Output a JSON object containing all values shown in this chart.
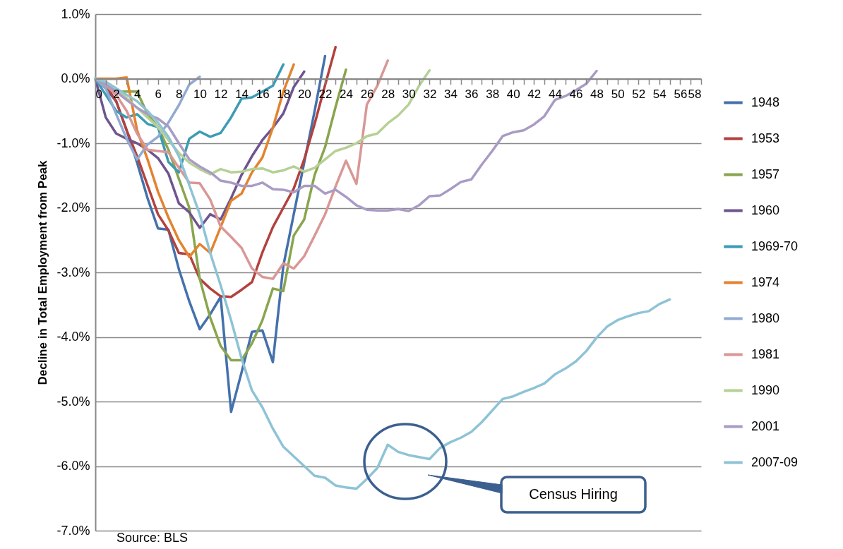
{
  "chart_data": {
    "type": "line",
    "ylabel": "Decline in Total Employment from Peak",
    "x": [
      0,
      1,
      2,
      3,
      4,
      5,
      6,
      7,
      8,
      9,
      10,
      11,
      12,
      13,
      14,
      15,
      16,
      17,
      18,
      19,
      20,
      21,
      22,
      23,
      24,
      25,
      26,
      27,
      28,
      29,
      30,
      31,
      32,
      33,
      34,
      35,
      36,
      37,
      38,
      39,
      40,
      41,
      42,
      43,
      44,
      45,
      46,
      47,
      48,
      49,
      50,
      51,
      52,
      53,
      54,
      55
    ],
    "series": [
      {
        "name": "1948",
        "color": "#4471ac",
        "values": [
          0,
          -0.15,
          -0.35,
          -0.8,
          -1.3,
          -1.85,
          -2.32,
          -2.34,
          -2.95,
          -3.45,
          -3.88,
          -3.65,
          -3.38,
          -5.16,
          -4.55,
          -3.92,
          -3.9,
          -4.39,
          -2.9,
          -2.1,
          -1.3,
          -0.5,
          0.35,
          null,
          null,
          null,
          null,
          null,
          null,
          null,
          null,
          null,
          null,
          null,
          null,
          null,
          null,
          null,
          null,
          null,
          null,
          null,
          null,
          null,
          null,
          null,
          null,
          null,
          null,
          null,
          null,
          null,
          null,
          null,
          null,
          null
        ]
      },
      {
        "name": "1953",
        "color": "#b3413e",
        "values": [
          0,
          -0.1,
          -0.35,
          -0.8,
          -1.2,
          -1.65,
          -2.1,
          -2.35,
          -2.7,
          -2.72,
          -3.1,
          -3.25,
          -3.37,
          -3.38,
          -3.27,
          -3.15,
          -2.69,
          -2.3,
          -2.0,
          -1.7,
          -1.25,
          -0.7,
          -0.1,
          0.49,
          null,
          null,
          null,
          null,
          null,
          null,
          null,
          null,
          null,
          null,
          null,
          null,
          null,
          null,
          null,
          null,
          null,
          null,
          null,
          null,
          null,
          null,
          null,
          null,
          null,
          null,
          null,
          null,
          null,
          null,
          null,
          null
        ]
      },
      {
        "name": "1957",
        "color": "#89a54e",
        "values": [
          0,
          -0.1,
          -0.2,
          -0.2,
          -0.2,
          -0.55,
          -0.75,
          -1.1,
          -1.55,
          -2.0,
          -3.1,
          -3.7,
          -4.14,
          -4.36,
          -4.36,
          -4.1,
          -3.74,
          -3.25,
          -3.29,
          -2.43,
          -2.18,
          -1.49,
          -1.06,
          -0.44,
          0.14,
          null,
          null,
          null,
          null,
          null,
          null,
          null,
          null,
          null,
          null,
          null,
          null,
          null,
          null,
          null,
          null,
          null,
          null,
          null,
          null,
          null,
          null,
          null,
          null,
          null,
          null,
          null,
          null,
          null,
          null,
          null
        ]
      },
      {
        "name": "1960",
        "color": "#6f548f",
        "values": [
          0,
          -0.6,
          -0.85,
          -0.93,
          -1.0,
          -1.1,
          -1.23,
          -1.47,
          -1.93,
          -2.07,
          -2.31,
          -2.1,
          -2.18,
          -1.85,
          -1.49,
          -1.2,
          -0.95,
          -0.76,
          -0.54,
          -0.13,
          0.11,
          null,
          null,
          null,
          null,
          null,
          null,
          null,
          null,
          null,
          null,
          null,
          null,
          null,
          null,
          null,
          null,
          null,
          null,
          null,
          null,
          null,
          null,
          null,
          null,
          null,
          null,
          null,
          null,
          null,
          null,
          null,
          null,
          null,
          null,
          null
        ]
      },
      {
        "name": "1969-70",
        "color": "#3c9bb5",
        "values": [
          0,
          -0.25,
          -0.5,
          -0.6,
          -0.55,
          -0.7,
          -0.75,
          -1.29,
          -1.45,
          -0.93,
          -0.82,
          -0.9,
          -0.84,
          -0.6,
          -0.31,
          -0.29,
          -0.2,
          -0.11,
          0.22,
          null,
          null,
          null,
          null,
          null,
          null,
          null,
          null,
          null,
          null,
          null,
          null,
          null,
          null,
          null,
          null,
          null,
          null,
          null,
          null,
          null,
          null,
          null,
          null,
          null,
          null,
          null,
          null,
          null,
          null,
          null,
          null,
          null,
          null,
          null,
          null,
          null
        ]
      },
      {
        "name": "1974",
        "color": "#e3832f",
        "values": [
          0,
          0,
          0,
          0.02,
          -0.8,
          -1.25,
          -1.75,
          -2.15,
          -2.5,
          -2.76,
          -2.56,
          -2.7,
          -2.3,
          -1.89,
          -1.78,
          -1.45,
          -1.22,
          -0.76,
          -0.2,
          0.22,
          null,
          null,
          null,
          null,
          null,
          null,
          null,
          null,
          null,
          null,
          null,
          null,
          null,
          null,
          null,
          null,
          null,
          null,
          null,
          null,
          null,
          null,
          null,
          null,
          null,
          null,
          null,
          null,
          null,
          null,
          null,
          null,
          null,
          null,
          null,
          null
        ]
      },
      {
        "name": "1980",
        "color": "#92aad2",
        "values": [
          0,
          -0.15,
          -0.55,
          -0.93,
          -1.25,
          -1.02,
          -0.9,
          -0.68,
          -0.41,
          -0.09,
          0.03,
          null,
          null,
          null,
          null,
          null,
          null,
          null,
          null,
          null,
          null,
          null,
          null,
          null,
          null,
          null,
          null,
          null,
          null,
          null,
          null,
          null,
          null,
          null,
          null,
          null,
          null,
          null,
          null,
          null,
          null,
          null,
          null,
          null,
          null,
          null,
          null,
          null,
          null,
          null,
          null,
          null,
          null,
          null,
          null,
          null
        ]
      },
      {
        "name": "1981",
        "color": "#d99795",
        "values": [
          0,
          -0.1,
          -0.25,
          -0.5,
          -0.85,
          -1.1,
          -1.12,
          -1.14,
          -1.38,
          -1.61,
          -1.62,
          -1.87,
          -2.29,
          -2.45,
          -2.62,
          -2.94,
          -3.07,
          -3.1,
          -2.86,
          -2.94,
          -2.75,
          -2.43,
          -2.1,
          -1.67,
          -1.27,
          -1.63,
          -0.4,
          -0.11,
          0.28,
          null,
          null,
          null,
          null,
          null,
          null,
          null,
          null,
          null,
          null,
          null,
          null,
          null,
          null,
          null,
          null,
          null,
          null,
          null,
          null,
          null,
          null,
          null,
          null,
          null,
          null,
          null
        ]
      },
      {
        "name": "1990",
        "color": "#b6d095",
        "values": [
          0,
          -0.05,
          -0.15,
          -0.3,
          -0.45,
          -0.6,
          -0.75,
          -0.95,
          -1.15,
          -1.3,
          -1.4,
          -1.48,
          -1.4,
          -1.45,
          -1.44,
          -1.4,
          -1.39,
          -1.45,
          -1.42,
          -1.36,
          -1.44,
          -1.38,
          -1.25,
          -1.12,
          -1.07,
          -1.0,
          -0.89,
          -0.85,
          -0.69,
          -0.57,
          -0.4,
          -0.11,
          0.13,
          null,
          null,
          null,
          null,
          null,
          null,
          null,
          null,
          null,
          null,
          null,
          null,
          null,
          null,
          null,
          null,
          null,
          null,
          null,
          null,
          null,
          null,
          null
        ]
      },
      {
        "name": "2001",
        "color": "#a99bc4",
        "values": [
          0,
          -0.09,
          -0.2,
          -0.33,
          -0.45,
          -0.55,
          -0.62,
          -0.74,
          -1.0,
          -1.25,
          -1.36,
          -1.45,
          -1.58,
          -1.61,
          -1.66,
          -1.66,
          -1.61,
          -1.71,
          -1.72,
          -1.76,
          -1.66,
          -1.66,
          -1.78,
          -1.72,
          -1.83,
          -1.96,
          -2.03,
          -2.04,
          -2.04,
          -2.02,
          -2.05,
          -1.96,
          -1.82,
          -1.81,
          -1.71,
          -1.6,
          -1.56,
          -1.33,
          -1.12,
          -0.89,
          -0.83,
          -0.8,
          -0.71,
          -0.58,
          -0.33,
          -0.27,
          -0.18,
          -0.08,
          0.12,
          null,
          null,
          null,
          null,
          null,
          null,
          null
        ]
      },
      {
        "name": "2007-09",
        "color": "#8ec3d6",
        "values": [
          0,
          -0.05,
          -0.15,
          -0.25,
          -0.35,
          -0.5,
          -0.68,
          -0.9,
          -1.2,
          -1.65,
          -2.1,
          -2.7,
          -3.2,
          -3.74,
          -4.33,
          -4.83,
          -5.09,
          -5.42,
          -5.7,
          -5.85,
          -6.0,
          -6.15,
          -6.18,
          -6.3,
          -6.33,
          -6.35,
          -6.2,
          -6.03,
          -5.67,
          -5.78,
          -5.83,
          -5.86,
          -5.89,
          -5.72,
          -5.63,
          -5.56,
          -5.47,
          -5.32,
          -5.14,
          -4.96,
          -4.92,
          -4.85,
          -4.79,
          -4.72,
          -4.58,
          -4.49,
          -4.38,
          -4.22,
          -4.01,
          -3.84,
          -3.74,
          -3.68,
          -3.63,
          -3.6,
          -3.49,
          -3.42
        ]
      }
    ],
    "xlim": [
      0,
      58
    ],
    "xticks": [
      0,
      {
        "value": 1,
        "label": null
      },
      2,
      {
        "value": 3,
        "label": null
      },
      4,
      {
        "value": 5,
        "label": null
      },
      6,
      {
        "value": 7,
        "label": null
      },
      8,
      {
        "value": 9,
        "label": null
      },
      10,
      {
        "value": 11,
        "label": null
      },
      12,
      {
        "value": 13,
        "label": null
      },
      14,
      {
        "value": 15,
        "label": null
      },
      16,
      {
        "value": 17,
        "label": null
      },
      18,
      {
        "value": 19,
        "label": null
      },
      20,
      {
        "value": 21,
        "label": null
      },
      22,
      {
        "value": 23,
        "label": null
      },
      24,
      {
        "value": 25,
        "label": null
      },
      26,
      {
        "value": 27,
        "label": null
      },
      28,
      {
        "value": 29,
        "label": null
      },
      30,
      {
        "value": 31,
        "label": null
      },
      32,
      {
        "value": 33,
        "label": null
      },
      34,
      {
        "value": 35,
        "label": null
      },
      36,
      {
        "value": 37,
        "label": null
      },
      38,
      {
        "value": 39,
        "label": null
      },
      40,
      {
        "value": 41,
        "label": null
      },
      42,
      {
        "value": 43,
        "label": null
      },
      44,
      {
        "value": 45,
        "label": null
      },
      46,
      {
        "value": 47,
        "label": null
      },
      48,
      {
        "value": 49,
        "label": null
      },
      50,
      {
        "value": 51,
        "label": null
      },
      52,
      {
        "value": 53,
        "label": null
      },
      54,
      {
        "value": 55,
        "label": null
      },
      56,
      {
        "value": 57,
        "label": null
      },
      58
    ],
    "ylim": [
      -7,
      1
    ],
    "yticks": [
      {
        "value": 1,
        "label": "1.0%"
      },
      {
        "value": 0,
        "label": "0.0%"
      },
      {
        "value": -1,
        "label": "-1.0%"
      },
      {
        "value": -2,
        "label": "-2.0%"
      },
      {
        "value": -3,
        "label": "-3.0%"
      },
      {
        "value": -4,
        "label": "-4.0%"
      },
      {
        "value": -5,
        "label": "-5.0%"
      },
      {
        "value": -6,
        "label": "-6.0%"
      },
      {
        "value": -7,
        "label": "-7.0%"
      }
    ],
    "grid": "y",
    "legend": "right",
    "marker": "none",
    "line_style": "solid",
    "annotations": [
      "Census Hiring",
      "Source: BLS"
    ]
  }
}
